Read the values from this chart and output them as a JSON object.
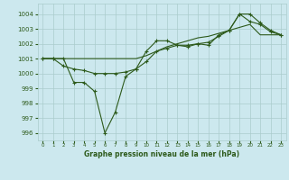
{
  "title": "Graphe pression niveau de la mer (hPa)",
  "bg_color": "#cce8ee",
  "grid_color": "#aacccc",
  "line_color": "#2d5a1b",
  "x_labels": [
    "0",
    "1",
    "2",
    "3",
    "4",
    "5",
    "6",
    "7",
    "8",
    "9",
    "10",
    "11",
    "12",
    "13",
    "14",
    "15",
    "16",
    "17",
    "18",
    "19",
    "20",
    "21",
    "22",
    "23"
  ],
  "ylim": [
    995.5,
    1004.7
  ],
  "yticks": [
    996,
    997,
    998,
    999,
    1000,
    1001,
    1002,
    1003,
    1004
  ],
  "line1": [
    1001.0,
    1001.0,
    1001.0,
    999.4,
    999.4,
    998.8,
    996.0,
    997.4,
    999.8,
    1000.3,
    1001.5,
    1002.2,
    1002.2,
    1001.9,
    1001.8,
    1002.0,
    1001.9,
    1002.6,
    1002.9,
    1004.0,
    1003.5,
    1003.3,
    1002.8,
    1002.6
  ],
  "line2": [
    1001.0,
    1001.0,
    1000.5,
    1000.3,
    1000.2,
    1000.0,
    1000.0,
    1000.0,
    1000.1,
    1000.3,
    1000.8,
    1001.5,
    1001.7,
    1001.9,
    1001.9,
    1002.0,
    1002.1,
    1002.5,
    1002.9,
    1004.0,
    1004.0,
    1003.4,
    1002.9,
    1002.6
  ],
  "line3": [
    1001.0,
    1001.0,
    1001.0,
    1001.0,
    1001.0,
    1001.0,
    1001.0,
    1001.0,
    1001.0,
    1001.0,
    1001.2,
    1001.5,
    1001.8,
    1002.0,
    1002.2,
    1002.4,
    1002.5,
    1002.7,
    1002.9,
    1003.1,
    1003.3,
    1002.6,
    1002.6,
    1002.6
  ]
}
